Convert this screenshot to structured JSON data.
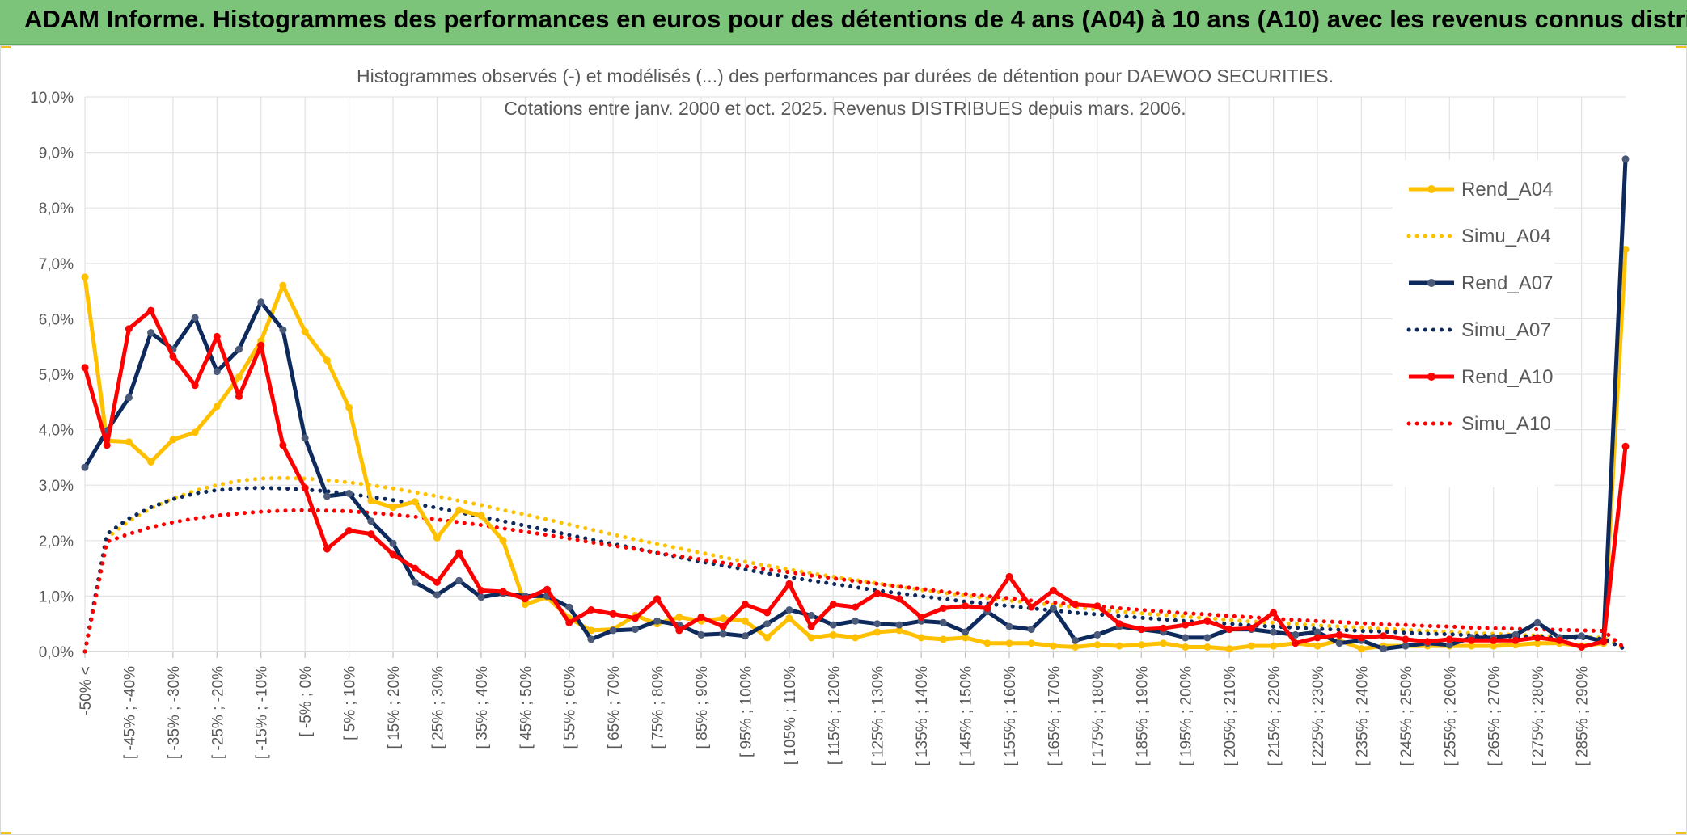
{
  "header": {
    "title": "ADAM Informe. Histogrammes des performances en euros pour des détentions de 4 ans (A04) à 10 ans (A10) avec les revenus connus distribués",
    "bg_color": "#7cc47a"
  },
  "chart_data": {
    "type": "line",
    "title": "Histogrammes observés (-) et modélisés (...) des performances par durées de détention pour DAEWOO SECURITIES.",
    "subtitle": "Cotations entre janv. 2000 et oct. 2025. Revenus DISTRIBUES depuis mars. 2006.",
    "xlabel": "",
    "ylabel": "",
    "ylim": [
      0,
      10
    ],
    "y_ticks": [
      "0,0%",
      "1,0%",
      "2,0%",
      "3,0%",
      "4,0%",
      "5,0%",
      "6,0%",
      "7,0%",
      "8,0%",
      "9,0%",
      "10,0%"
    ],
    "grid": true,
    "legend_position": "right",
    "x_count": 71,
    "category_labels": [
      "-50% <",
      "[ -45% ; -40%",
      "[ -35% ; -30%",
      "[ -25% ; -20%",
      "[ -15% ; -10%",
      "[ -5% ; 0%",
      "[ 5% ; 10%",
      "[ 15% ; 20%",
      "[ 25% ; 30%",
      "[ 35% ; 40%",
      "[ 45% ; 50%",
      "[ 55% ; 60%",
      "[ 65% ; 70%",
      "[ 75% ; 80%",
      "[ 85% ; 90%",
      "[ 95% ; 100%",
      "[ 105% ; 110%",
      "[ 115% ; 120%",
      "[ 125% ; 130%",
      "[ 135% ; 140%",
      "[ 145% ; 150%",
      "[ 155% ; 160%",
      "[ 165% ; 170%",
      "[ 175% ; 180%",
      "[ 185% ; 190%",
      "[ 195% ; 200%",
      "[ 205% ; 210%",
      "[ 215% ; 220%",
      "[ 225% ; 230%",
      "[ 235% ; 240%",
      "[ 245% ; 250%",
      "[ 255% ; 260%",
      "[ 265% ; 270%",
      "[ 275% ; 280%",
      "[ 285% ; 290%"
    ],
    "series": [
      {
        "name": "Rend_A04",
        "style": "solid",
        "color": "#ffc000",
        "values": [
          6.75,
          3.8,
          3.78,
          3.42,
          3.82,
          3.95,
          4.42,
          4.95,
          5.6,
          6.6,
          5.77,
          5.25,
          4.4,
          2.72,
          2.6,
          2.7,
          2.05,
          2.55,
          2.45,
          2.0,
          0.85,
          0.98,
          0.6,
          0.38,
          0.4,
          0.65,
          0.5,
          0.62,
          0.55,
          0.6,
          0.55,
          0.25,
          0.6,
          0.25,
          0.3,
          0.25,
          0.35,
          0.38,
          0.25,
          0.22,
          0.25,
          0.15,
          0.15,
          0.15,
          0.1,
          0.08,
          0.12,
          0.1,
          0.12,
          0.15,
          0.08,
          0.08,
          0.05,
          0.1,
          0.1,
          0.15,
          0.1,
          0.2,
          0.05,
          0.1,
          0.1,
          0.1,
          0.1,
          0.1,
          0.1,
          0.12,
          0.15,
          0.15,
          0.1,
          0.15,
          7.25
        ]
      },
      {
        "name": "Simu_A04",
        "style": "dotted",
        "color": "#ffc000",
        "values": [
          0.0,
          2.05,
          2.35,
          2.58,
          2.76,
          2.9,
          3.0,
          3.08,
          3.12,
          3.13,
          3.12,
          3.09,
          3.05,
          3.0,
          2.94,
          2.87,
          2.8,
          2.72,
          2.64,
          2.55,
          2.47,
          2.38,
          2.29,
          2.2,
          2.11,
          2.02,
          1.94,
          1.86,
          1.78,
          1.7,
          1.62,
          1.55,
          1.48,
          1.41,
          1.35,
          1.29,
          1.23,
          1.17,
          1.11,
          1.06,
          1.01,
          0.96,
          0.92,
          0.88,
          0.84,
          0.8,
          0.76,
          0.72,
          0.69,
          0.66,
          0.63,
          0.6,
          0.57,
          0.54,
          0.52,
          0.5,
          0.47,
          0.45,
          0.43,
          0.41,
          0.39,
          0.37,
          0.35,
          0.33,
          0.32,
          0.3,
          0.29,
          0.27,
          0.26,
          0.25,
          0.05
        ]
      },
      {
        "name": "Rend_A07",
        "style": "solid",
        "color": "#0e2a5c",
        "values": [
          3.32,
          3.98,
          4.58,
          5.75,
          5.45,
          6.02,
          5.05,
          5.45,
          6.3,
          5.8,
          3.85,
          2.8,
          2.85,
          2.35,
          1.95,
          1.25,
          1.02,
          1.28,
          0.98,
          1.05,
          1.0,
          1.0,
          0.8,
          0.22,
          0.38,
          0.4,
          0.55,
          0.48,
          0.3,
          0.32,
          0.28,
          0.5,
          0.75,
          0.65,
          0.48,
          0.55,
          0.5,
          0.48,
          0.55,
          0.52,
          0.35,
          0.72,
          0.45,
          0.4,
          0.78,
          0.2,
          0.3,
          0.45,
          0.4,
          0.35,
          0.25,
          0.25,
          0.4,
          0.4,
          0.35,
          0.3,
          0.35,
          0.15,
          0.2,
          0.05,
          0.1,
          0.15,
          0.12,
          0.25,
          0.25,
          0.3,
          0.52,
          0.25,
          0.28,
          0.18,
          8.88
        ]
      },
      {
        "name": "Simu_A07",
        "style": "dotted",
        "color": "#0e2a5c",
        "values": [
          0.0,
          2.12,
          2.4,
          2.6,
          2.75,
          2.85,
          2.91,
          2.94,
          2.95,
          2.94,
          2.92,
          2.89,
          2.84,
          2.79,
          2.73,
          2.66,
          2.59,
          2.51,
          2.43,
          2.35,
          2.27,
          2.19,
          2.1,
          2.02,
          1.94,
          1.86,
          1.78,
          1.7,
          1.62,
          1.55,
          1.48,
          1.41,
          1.34,
          1.28,
          1.22,
          1.16,
          1.1,
          1.05,
          1.0,
          0.95,
          0.9,
          0.86,
          0.82,
          0.78,
          0.74,
          0.7,
          0.67,
          0.64,
          0.61,
          0.58,
          0.55,
          0.52,
          0.5,
          0.47,
          0.45,
          0.43,
          0.41,
          0.39,
          0.37,
          0.36,
          0.34,
          0.32,
          0.31,
          0.29,
          0.28,
          0.27,
          0.26,
          0.25,
          0.24,
          0.23,
          0.04
        ]
      },
      {
        "name": "Rend_A10",
        "style": "solid",
        "color": "#ff0000",
        "values": [
          5.12,
          3.72,
          5.82,
          6.15,
          5.32,
          4.8,
          5.68,
          4.6,
          5.52,
          3.72,
          2.95,
          1.85,
          2.18,
          2.12,
          1.75,
          1.5,
          1.25,
          1.78,
          1.1,
          1.08,
          0.95,
          1.12,
          0.52,
          0.75,
          0.68,
          0.6,
          0.95,
          0.38,
          0.62,
          0.45,
          0.85,
          0.7,
          1.22,
          0.45,
          0.85,
          0.8,
          1.05,
          0.95,
          0.62,
          0.78,
          0.82,
          0.78,
          1.35,
          0.8,
          1.1,
          0.85,
          0.82,
          0.5,
          0.4,
          0.42,
          0.48,
          0.55,
          0.4,
          0.42,
          0.7,
          0.15,
          0.25,
          0.3,
          0.25,
          0.28,
          0.22,
          0.18,
          0.22,
          0.2,
          0.2,
          0.2,
          0.25,
          0.2,
          0.08,
          0.18,
          3.7
        ]
      },
      {
        "name": "Simu_A10",
        "style": "dotted",
        "color": "#ff0000",
        "values": [
          0.0,
          1.98,
          2.12,
          2.24,
          2.33,
          2.4,
          2.45,
          2.49,
          2.52,
          2.54,
          2.55,
          2.54,
          2.53,
          2.5,
          2.47,
          2.43,
          2.38,
          2.33,
          2.28,
          2.22,
          2.16,
          2.1,
          2.04,
          1.97,
          1.91,
          1.85,
          1.78,
          1.72,
          1.66,
          1.6,
          1.54,
          1.48,
          1.43,
          1.37,
          1.32,
          1.27,
          1.22,
          1.17,
          1.13,
          1.08,
          1.04,
          1.0,
          0.96,
          0.92,
          0.88,
          0.85,
          0.82,
          0.78,
          0.75,
          0.72,
          0.69,
          0.67,
          0.64,
          0.62,
          0.59,
          0.57,
          0.55,
          0.53,
          0.51,
          0.49,
          0.48,
          0.46,
          0.45,
          0.43,
          0.42,
          0.41,
          0.4,
          0.39,
          0.38,
          0.37,
          0.05
        ]
      }
    ]
  }
}
